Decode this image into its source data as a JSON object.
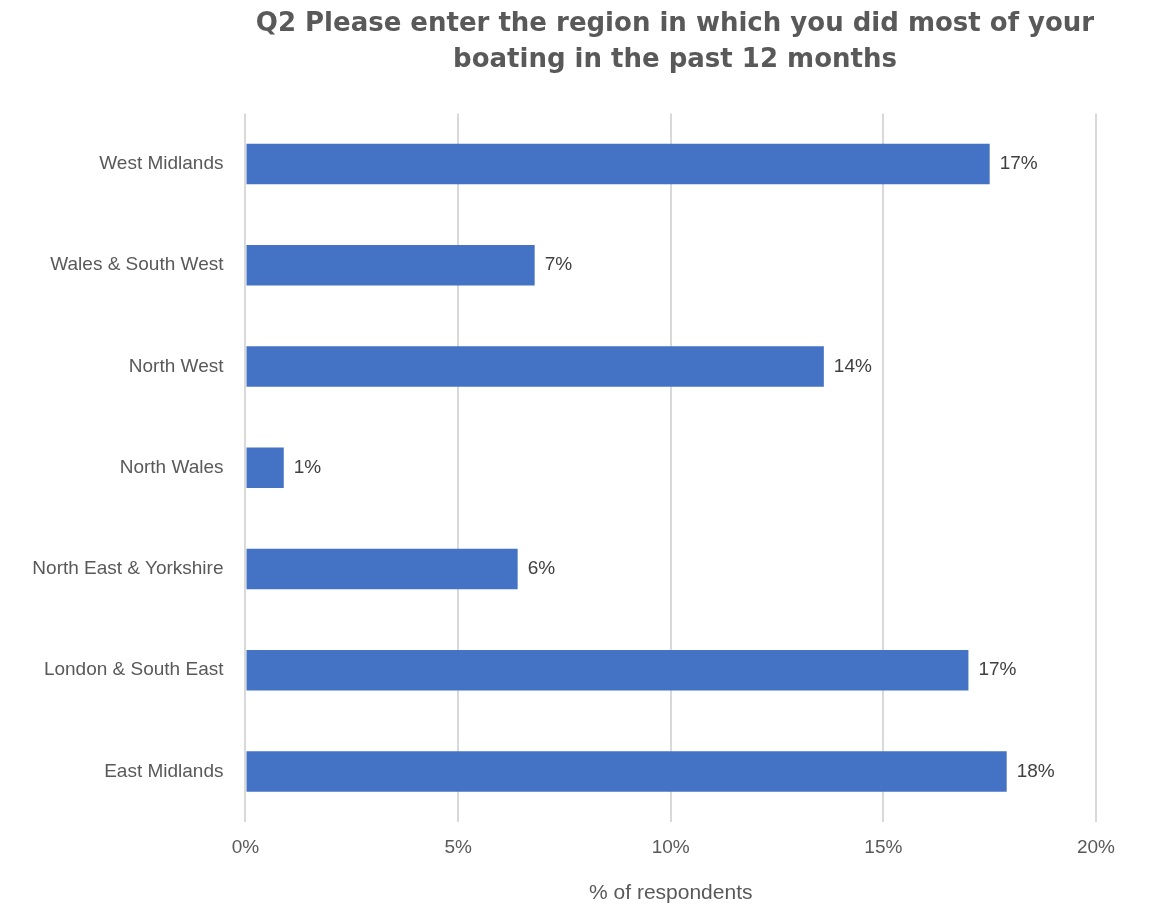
{
  "chart_data": {
    "type": "bar",
    "orientation": "horizontal",
    "title": "Q2 Please enter the region in which you did most of your boating in the past 12 months",
    "xlabel": "% of respondents",
    "categories": [
      "West Midlands",
      "Wales & South West",
      "North West",
      "North Wales",
      "North East & Yorkshire",
      "London & South East",
      "East Midlands"
    ],
    "values": [
      17.5,
      6.8,
      13.6,
      0.9,
      6.4,
      17.0,
      17.9
    ],
    "value_labels": [
      "17%",
      "7%",
      "14%",
      "1%",
      "6%",
      "17%",
      "18%"
    ],
    "color": "#4472c4",
    "xlim": [
      0,
      20
    ],
    "xticks": [
      {
        "value": 0,
        "label": "0%"
      },
      {
        "value": 5,
        "label": "5%"
      },
      {
        "value": 10,
        "label": "10%"
      },
      {
        "value": 15,
        "label": "15%"
      },
      {
        "value": 20,
        "label": "20%"
      }
    ],
    "grid": "x",
    "legend": false
  }
}
